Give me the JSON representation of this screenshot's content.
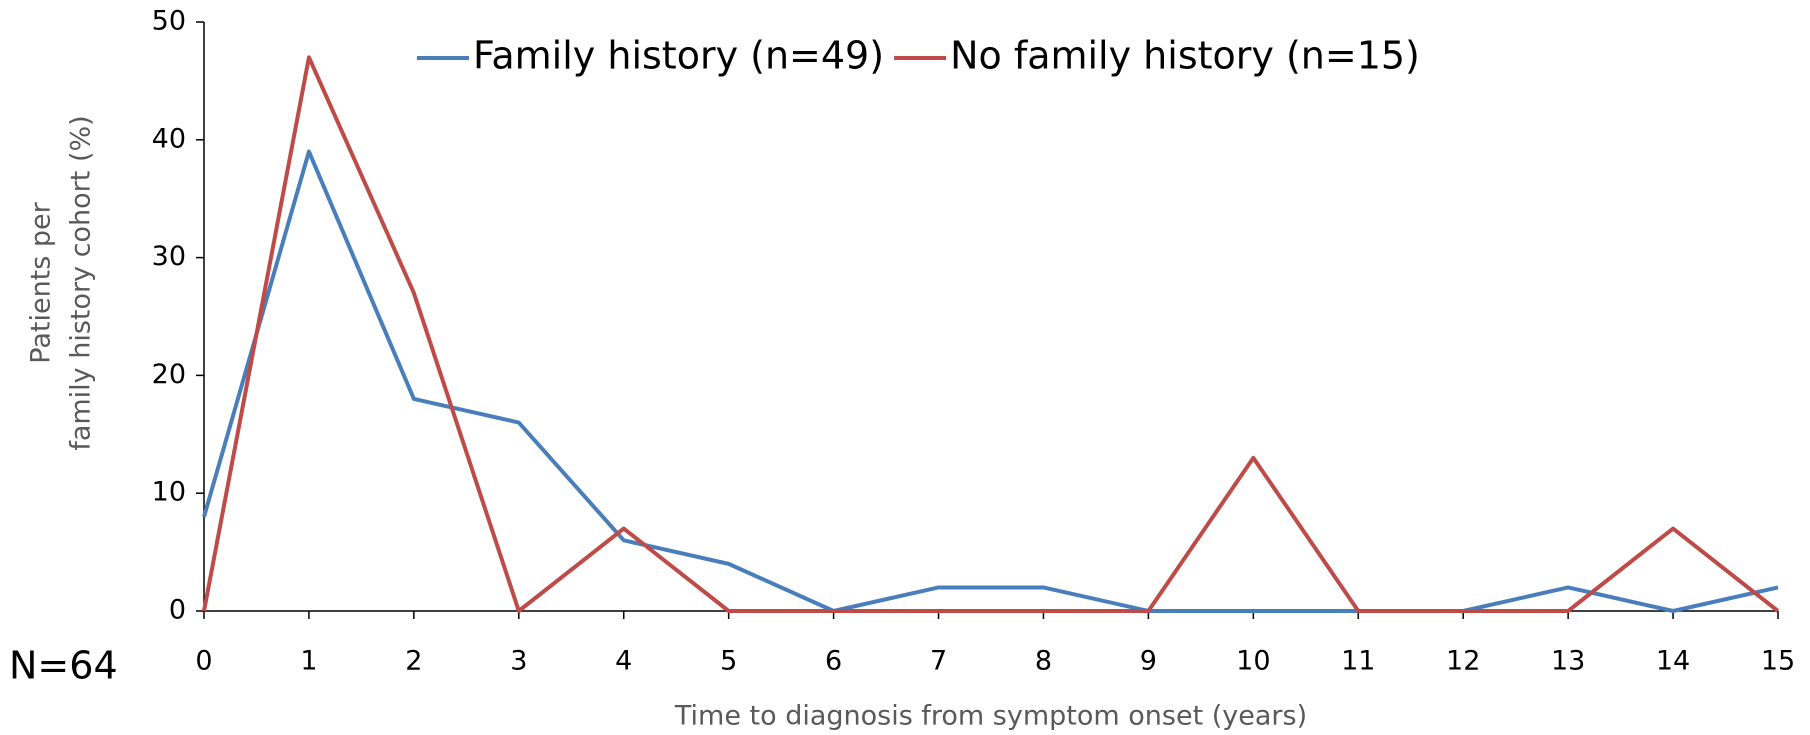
{
  "chart_data": {
    "type": "line",
    "x": [
      0,
      1,
      2,
      3,
      4,
      5,
      6,
      7,
      8,
      9,
      10,
      11,
      12,
      13,
      14,
      15
    ],
    "series": [
      {
        "name": "Family history (n=49)",
        "color": "#4a7ebb",
        "values": [
          8,
          39,
          18,
          16,
          6,
          4,
          0,
          2,
          2,
          0,
          0,
          0,
          0,
          2,
          0,
          2
        ]
      },
      {
        "name": "No family history (n=15)",
        "color": "#be4b48",
        "values": [
          0,
          47,
          27,
          0,
          7,
          0,
          0,
          0,
          0,
          0,
          13,
          0,
          0,
          0,
          7,
          0
        ]
      }
    ],
    "xlim": [
      0,
      15
    ],
    "xticks": [
      0,
      1,
      2,
      3,
      4,
      5,
      6,
      7,
      8,
      9,
      10,
      11,
      12,
      13,
      14,
      15
    ],
    "ylim": [
      0,
      50
    ],
    "yticks": [
      0,
      10,
      20,
      30,
      40,
      50
    ],
    "xlabel": "Time to diagnosis from symptom onset (years)",
    "ylabel": [
      "Patients per",
      "family history cohort (%)"
    ],
    "annotation": "N=64",
    "legend": "top",
    "grid": false
  }
}
